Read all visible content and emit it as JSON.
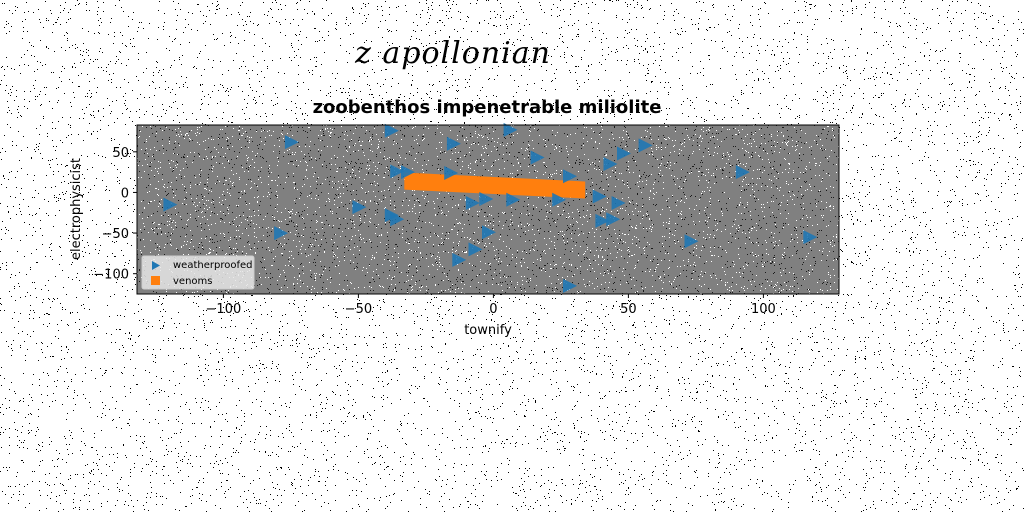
{
  "figure": {
    "suptitle": "z apollonian",
    "background": "#ffffff"
  },
  "chart_data": {
    "type": "scatter",
    "title": "zoobenthos impenetrable miliolite",
    "xlabel": "townify",
    "ylabel": "electrophysicist",
    "xlim": [
      -132,
      128
    ],
    "ylim": [
      -125,
      83
    ],
    "xticks": [
      -100,
      -50,
      0,
      50,
      100
    ],
    "yticks": [
      50,
      0,
      -50,
      -100
    ],
    "xtick_labels": [
      "−100",
      "−50",
      "0",
      "50",
      "100"
    ],
    "ytick_labels": [
      "50",
      "0",
      "−50",
      "−100"
    ],
    "plot_background": "#808080",
    "grid": false,
    "legend_position": "lower-left",
    "series": [
      {
        "name": "weatherproofed",
        "kind": "scatter",
        "marker": "triangle-right",
        "color": "#1f77b4",
        "points": [
          [
            -120,
            -15
          ],
          [
            -75,
            62
          ],
          [
            -79,
            -50
          ],
          [
            -50,
            -18
          ],
          [
            -38,
            76
          ],
          [
            -38,
            -28
          ],
          [
            -36,
            -33
          ],
          [
            -36,
            26
          ],
          [
            -32,
            25
          ],
          [
            -15,
            60
          ],
          [
            -16,
            24
          ],
          [
            -13,
            -83
          ],
          [
            -8,
            -13
          ],
          [
            -7,
            -70
          ],
          [
            -3,
            -8
          ],
          [
            -2,
            -49
          ],
          [
            6,
            77
          ],
          [
            7,
            -9
          ],
          [
            16,
            43
          ],
          [
            24,
            -9
          ],
          [
            28,
            20
          ],
          [
            28,
            -115
          ],
          [
            39,
            -5
          ],
          [
            40,
            -35
          ],
          [
            43,
            35
          ],
          [
            44,
            -33
          ],
          [
            46,
            -13
          ],
          [
            48,
            48
          ],
          [
            56,
            58
          ],
          [
            73,
            -60
          ],
          [
            92,
            25
          ],
          [
            117,
            -55
          ]
        ]
      },
      {
        "name": "venoms",
        "kind": "band",
        "color": "#ff7f0e",
        "start": [
          -33,
          14
        ],
        "end": [
          34,
          3
        ],
        "thickness": 21
      }
    ]
  }
}
